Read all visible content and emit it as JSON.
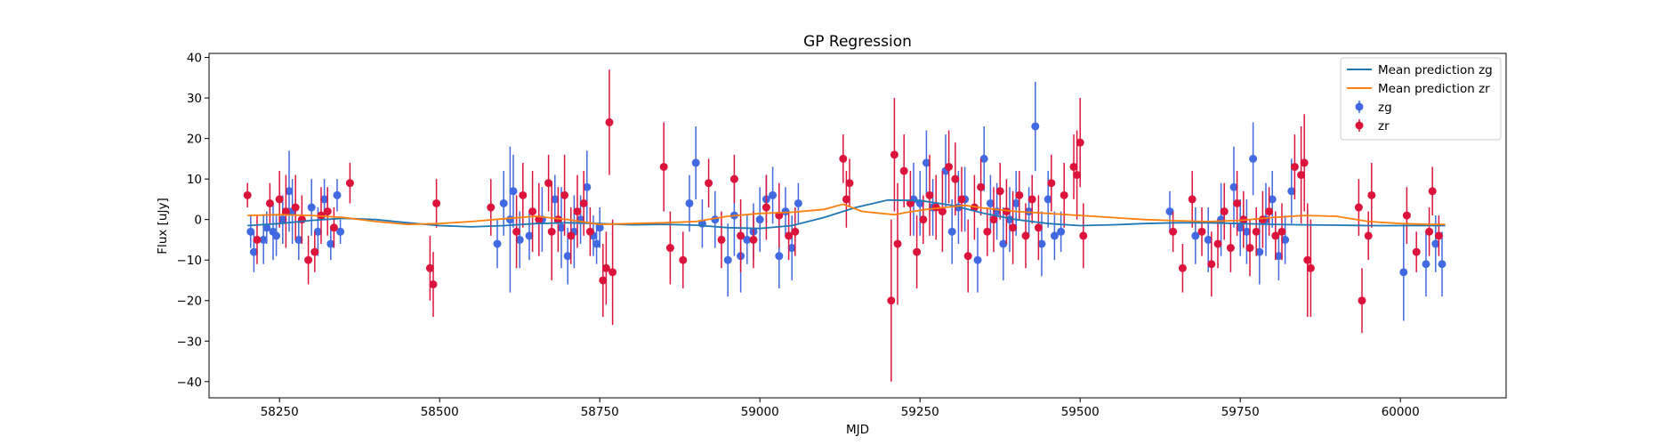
{
  "chart_data": {
    "type": "scatter",
    "title": "GP Regression",
    "xlabel": "MJD",
    "ylabel": "Flux [uJy]",
    "xlim": [
      58140,
      60165
    ],
    "ylim": [
      -44,
      41
    ],
    "xticks": [
      58250,
      58500,
      58750,
      59000,
      59250,
      59500,
      59750,
      60000
    ],
    "yticks": [
      -40,
      -30,
      -20,
      -10,
      0,
      10,
      20,
      30,
      40
    ],
    "grid": false,
    "legend_position": "top-right",
    "legend": [
      {
        "label": "Mean prediction zg",
        "kind": "line",
        "color": "#1f77b4"
      },
      {
        "label": "Mean prediction zr",
        "kind": "line",
        "color": "#ff7f0e"
      },
      {
        "label": "zg",
        "kind": "errorbar",
        "color": "#4169e1"
      },
      {
        "label": "zr",
        "kind": "errorbar",
        "color": "#dc143c"
      }
    ],
    "series": [
      {
        "name": "Mean prediction zg",
        "kind": "line",
        "color": "#1f77b4",
        "x": [
          58200,
          58250,
          58300,
          58350,
          58400,
          58450,
          58500,
          58550,
          58600,
          58650,
          58700,
          58750,
          58800,
          58850,
          58900,
          58950,
          59000,
          59050,
          59100,
          59150,
          59200,
          59250,
          59300,
          59350,
          59400,
          59450,
          59500,
          59550,
          59600,
          59650,
          59700,
          59750,
          59800,
          59850,
          59900,
          59950,
          60000,
          60050,
          60070
        ],
        "y": [
          -1.5,
          -1.0,
          -0.2,
          0.3,
          0.0,
          -0.8,
          -1.5,
          -1.8,
          -1.5,
          -1.0,
          -0.8,
          -1.0,
          -1.3,
          -1.2,
          -1.4,
          -2.0,
          -2.2,
          -1.5,
          0.5,
          3.0,
          4.8,
          4.7,
          3.5,
          1.5,
          0.0,
          -1.0,
          -1.5,
          -1.3,
          -1.0,
          -0.8,
          -0.8,
          -1.0,
          -1.2,
          -1.3,
          -1.4,
          -1.5,
          -1.5,
          -1.5,
          -1.5
        ]
      },
      {
        "name": "Mean prediction zr",
        "kind": "line",
        "color": "#ff7f0e",
        "x": [
          58200,
          58250,
          58300,
          58350,
          58400,
          58450,
          58500,
          58550,
          58600,
          58650,
          58700,
          58750,
          58800,
          58850,
          58900,
          58950,
          59000,
          59050,
          59100,
          59130,
          59160,
          59190,
          59210,
          59230,
          59260,
          59290,
          59320,
          59350,
          59400,
          59450,
          59500,
          59550,
          59600,
          59650,
          59700,
          59750,
          59800,
          59850,
          59900,
          59950,
          60000,
          60050,
          60070
        ],
        "y": [
          1.0,
          1.2,
          1.0,
          0.5,
          -0.5,
          -1.2,
          -1.0,
          -0.5,
          0.2,
          0.8,
          0.0,
          -1.2,
          -1.0,
          -0.8,
          -0.5,
          0.8,
          1.5,
          1.8,
          2.5,
          3.8,
          2.0,
          1.5,
          1.2,
          1.8,
          2.5,
          3.0,
          3.5,
          2.8,
          2.0,
          1.5,
          1.0,
          0.5,
          0.0,
          -0.3,
          -0.5,
          -0.2,
          0.5,
          1.0,
          0.8,
          -0.5,
          -1.0,
          -1.2,
          -1.2
        ]
      },
      {
        "name": "zg",
        "kind": "errorbar",
        "color": "#4169e1",
        "x": [
          58205,
          58210,
          58225,
          58230,
          58240,
          58245,
          58255,
          58265,
          58270,
          58280,
          58300,
          58310,
          58320,
          58330,
          58340,
          58345,
          58590,
          58600,
          58610,
          58615,
          58625,
          58640,
          58660,
          58680,
          58690,
          58700,
          58710,
          58720,
          58730,
          58740,
          58745,
          58750,
          58890,
          58900,
          58910,
          58930,
          58950,
          58960,
          58970,
          58980,
          58990,
          59000,
          59010,
          59020,
          59030,
          59040,
          59050,
          59060,
          59240,
          59250,
          59260,
          59270,
          59290,
          59300,
          59310,
          59320,
          59340,
          59350,
          59360,
          59370,
          59380,
          59390,
          59400,
          59420,
          59430,
          59440,
          59450,
          59460,
          59470,
          59640,
          59680,
          59700,
          59720,
          59740,
          59750,
          59760,
          59770,
          59780,
          59790,
          59800,
          59810,
          59820,
          59830,
          60005,
          60040,
          60055,
          60065
        ],
        "y": [
          -3,
          -8,
          -5,
          -2,
          -3,
          -4,
          0,
          7,
          2,
          -5,
          3,
          -3,
          5,
          -6,
          6,
          -3,
          -6,
          4,
          0,
          7,
          -5,
          -4,
          0,
          5,
          -2,
          -9,
          -3,
          0,
          8,
          -4,
          -6,
          -2,
          4,
          14,
          -1,
          0,
          -10,
          1,
          -9,
          -5,
          -3,
          0,
          5,
          6,
          -9,
          2,
          -7,
          4,
          5,
          4,
          14,
          3,
          12,
          -3,
          3,
          5,
          -10,
          15,
          4,
          2,
          -6,
          0,
          4,
          2,
          23,
          -6,
          5,
          -4,
          -3,
          2,
          -4,
          -5,
          0,
          8,
          -2,
          -3,
          15,
          -8,
          0,
          5,
          -9,
          -5,
          7,
          -13,
          -11,
          -6,
          -11
        ],
        "err": [
          4,
          5,
          6,
          4,
          7,
          5,
          6,
          10,
          8,
          5,
          7,
          6,
          5,
          4,
          4,
          3,
          6,
          8,
          18,
          9,
          7,
          6,
          8,
          6,
          10,
          7,
          9,
          6,
          9,
          5,
          5,
          5,
          7,
          9,
          6,
          7,
          9,
          10,
          9,
          6,
          7,
          8,
          6,
          7,
          8,
          6,
          8,
          5,
          9,
          8,
          8,
          7,
          9,
          8,
          9,
          8,
          8,
          8,
          7,
          7,
          9,
          8,
          8,
          6,
          11,
          8,
          7,
          6,
          5,
          5,
          7,
          8,
          9,
          10,
          7,
          8,
          9,
          8,
          9,
          7,
          6,
          6,
          8,
          12,
          8,
          7,
          8
        ]
      },
      {
        "name": "zr",
        "kind": "errorbar",
        "color": "#dc143c",
        "x": [
          58200,
          58215,
          58235,
          58250,
          58260,
          58275,
          58285,
          58295,
          58305,
          58315,
          58325,
          58335,
          58360,
          58485,
          58490,
          58495,
          58580,
          58620,
          58630,
          58645,
          58655,
          58670,
          58675,
          58685,
          58695,
          58705,
          58715,
          58725,
          58735,
          58755,
          58760,
          58765,
          58770,
          58850,
          58860,
          58880,
          58920,
          58940,
          58960,
          58970,
          58990,
          59010,
          59030,
          59045,
          59055,
          59130,
          59135,
          59140,
          59205,
          59210,
          59215,
          59225,
          59235,
          59245,
          59255,
          59265,
          59275,
          59285,
          59295,
          59305,
          59315,
          59325,
          59335,
          59345,
          59355,
          59365,
          59375,
          59385,
          59395,
          59405,
          59415,
          59425,
          59435,
          59455,
          59475,
          59490,
          59495,
          59500,
          59505,
          59645,
          59660,
          59675,
          59690,
          59705,
          59715,
          59725,
          59735,
          59745,
          59755,
          59765,
          59775,
          59785,
          59795,
          59805,
          59815,
          59835,
          59845,
          59850,
          59855,
          59860,
          59935,
          59940,
          59950,
          59955,
          60010,
          60025,
          60045,
          60050,
          60060
        ],
        "y": [
          6,
          -5,
          4,
          5,
          2,
          3,
          0,
          -10,
          -8,
          1,
          2,
          -2,
          9,
          -12,
          -16,
          4,
          3,
          -3,
          6,
          2,
          0,
          9,
          -3,
          0,
          6,
          -4,
          2,
          4,
          -3,
          -15,
          -12,
          24,
          -13,
          13,
          -7,
          -10,
          9,
          -5,
          10,
          -4,
          -5,
          3,
          1,
          -4,
          -3,
          15,
          5,
          9,
          -20,
          16,
          -6,
          12,
          4,
          -8,
          0,
          6,
          3,
          2,
          13,
          10,
          5,
          -9,
          3,
          8,
          -3,
          0,
          7,
          2,
          -2,
          6,
          -4,
          5,
          -2,
          9,
          6,
          13,
          11,
          19,
          -4,
          -3,
          -12,
          5,
          -3,
          -11,
          -6,
          2,
          -7,
          4,
          0,
          -7,
          -3,
          0,
          2,
          -4,
          -3,
          13,
          11,
          14,
          -10,
          -12,
          3,
          -20,
          -4,
          6,
          1,
          -8,
          -3,
          7,
          -4
        ],
        "err": [
          3,
          6,
          5,
          7,
          9,
          8,
          6,
          6,
          5,
          7,
          6,
          5,
          5,
          8,
          8,
          6,
          7,
          9,
          8,
          10,
          9,
          7,
          12,
          8,
          10,
          7,
          9,
          8,
          6,
          9,
          9,
          13,
          13,
          11,
          9,
          7,
          6,
          7,
          6,
          9,
          7,
          8,
          8,
          6,
          6,
          6,
          7,
          6,
          20,
          14,
          15,
          9,
          8,
          9,
          6,
          10,
          8,
          10,
          9,
          9,
          8,
          9,
          8,
          7,
          6,
          8,
          7,
          8,
          9,
          6,
          8,
          6,
          8,
          7,
          8,
          8,
          11,
          11,
          8,
          5,
          6,
          7,
          6,
          8,
          6,
          7,
          6,
          8,
          7,
          7,
          6,
          7,
          6,
          6,
          7,
          8,
          12,
          12,
          14,
          12,
          7,
          8,
          6,
          8,
          7,
          5,
          6,
          6,
          5
        ]
      }
    ]
  }
}
